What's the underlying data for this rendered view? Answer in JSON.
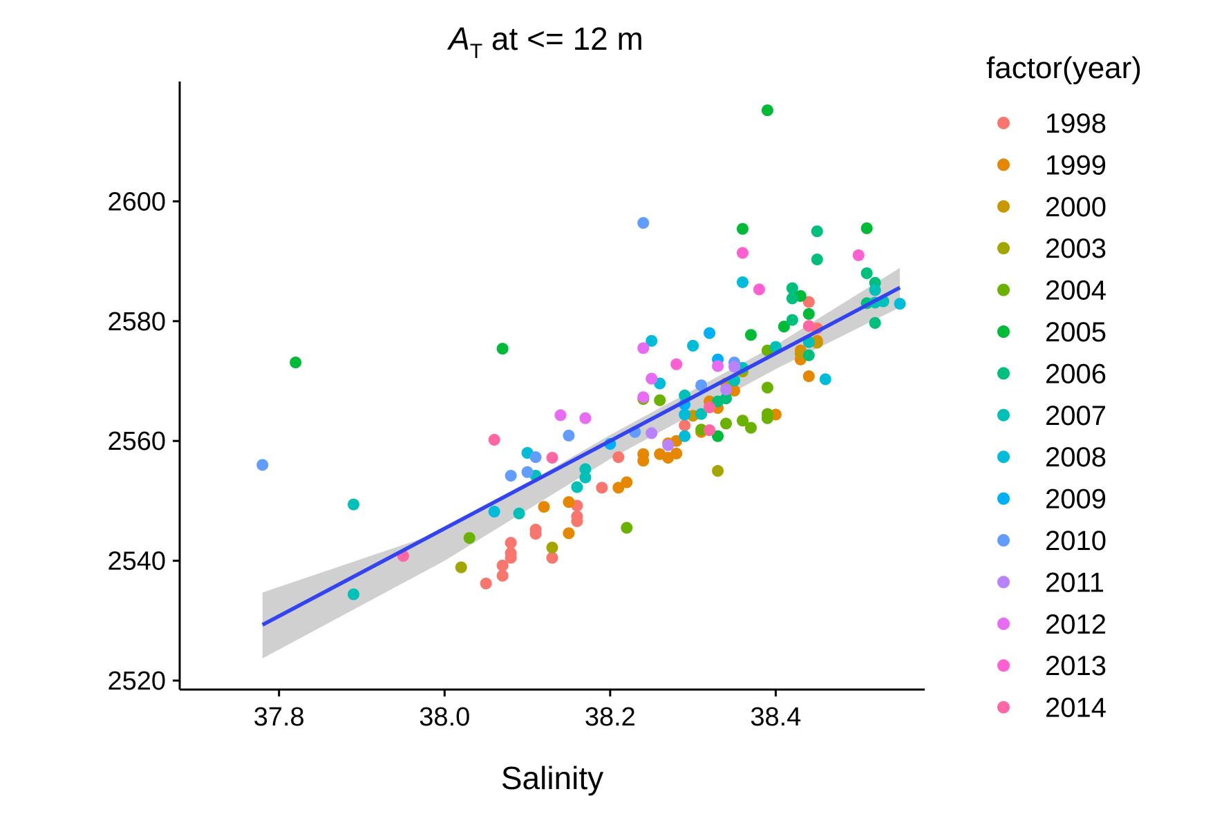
{
  "chart_data": {
    "type": "scatter",
    "title": "A",
    "title_subscript": "T",
    "title_rest": " at <= 12 m",
    "xlabel": "Salinity",
    "ylabel": "",
    "xlim": [
      37.68,
      38.58
    ],
    "ylim": [
      2518.5,
      2620
    ],
    "x_ticks": [
      37.8,
      38.0,
      38.2,
      38.4
    ],
    "x_tick_labels": [
      "37.8",
      "38.0",
      "38.2",
      "38.4"
    ],
    "y_ticks": [
      2520,
      2540,
      2560,
      2580,
      2600
    ],
    "y_tick_labels": [
      "2520",
      "2540",
      "2560",
      "2580",
      "2600"
    ],
    "grid": false,
    "legend_title": "factor(year)",
    "legend_position": "right",
    "regression": {
      "color": "#3344ee",
      "band_color": "#c8c8c8",
      "line": [
        [
          37.78,
          2529.3
        ],
        [
          38.55,
          2585.6
        ]
      ],
      "band_upper": [
        [
          37.78,
          2534.7
        ],
        [
          38.0,
          2545.0
        ],
        [
          38.2,
          2561.0
        ],
        [
          38.4,
          2576.0
        ],
        [
          38.55,
          2588.9
        ]
      ],
      "band_lower": [
        [
          37.78,
          2523.7
        ],
        [
          38.0,
          2540.0
        ],
        [
          38.2,
          2557.0
        ],
        [
          38.4,
          2572.0
        ],
        [
          38.55,
          2582.3
        ]
      ]
    },
    "series": [
      {
        "name": "1998",
        "color": "#F8766D",
        "points": [
          [
            38.05,
            2536.2
          ],
          [
            38.07,
            2537.5
          ],
          [
            38.07,
            2539.2
          ],
          [
            38.08,
            2540.5
          ],
          [
            38.08,
            2541.3
          ],
          [
            38.08,
            2543.0
          ],
          [
            38.11,
            2544.5
          ],
          [
            38.11,
            2545.2
          ],
          [
            38.13,
            2540.5
          ],
          [
            38.16,
            2546.6
          ],
          [
            38.16,
            2547.4
          ],
          [
            38.16,
            2549.2
          ],
          [
            38.19,
            2552.2
          ],
          [
            38.21,
            2557.3
          ],
          [
            38.29,
            2562.6
          ],
          [
            38.44,
            2583.2
          ],
          [
            38.45,
            2578.8
          ]
        ]
      },
      {
        "name": "1999",
        "color": "#E58700",
        "points": [
          [
            38.12,
            2549.0
          ],
          [
            38.15,
            2544.6
          ],
          [
            38.15,
            2549.8
          ],
          [
            38.21,
            2552.2
          ],
          [
            38.22,
            2553.1
          ],
          [
            38.24,
            2556.7
          ],
          [
            38.24,
            2557.8
          ],
          [
            38.26,
            2557.8
          ],
          [
            38.27,
            2557.2
          ],
          [
            38.27,
            2559.6
          ],
          [
            38.28,
            2557.9
          ],
          [
            38.28,
            2560.0
          ],
          [
            38.31,
            2561.5
          ],
          [
            38.32,
            2566.6
          ],
          [
            38.33,
            2565.5
          ],
          [
            38.35,
            2568.4
          ],
          [
            38.4,
            2564.4
          ],
          [
            38.43,
            2573.6
          ],
          [
            38.43,
            2575.1
          ],
          [
            38.44,
            2570.8
          ],
          [
            38.45,
            2576.7
          ]
        ]
      },
      {
        "name": "2000",
        "color": "#C99800",
        "points": [
          [
            38.3,
            2564.2
          ],
          [
            38.34,
            2569.6
          ],
          [
            38.43,
            2574.6
          ],
          [
            38.45,
            2576.4
          ]
        ]
      },
      {
        "name": "2003",
        "color": "#A3A500",
        "points": [
          [
            38.02,
            2538.9
          ],
          [
            38.13,
            2542.2
          ],
          [
            38.33,
            2555.0
          ],
          [
            38.36,
            2571.6
          ]
        ]
      },
      {
        "name": "2004",
        "color": "#6BB100",
        "points": [
          [
            38.03,
            2543.8
          ],
          [
            38.22,
            2545.5
          ],
          [
            38.24,
            2567.0
          ],
          [
            38.26,
            2566.8
          ],
          [
            38.31,
            2561.9
          ],
          [
            38.34,
            2562.9
          ],
          [
            38.36,
            2563.4
          ],
          [
            38.37,
            2562.2
          ],
          [
            38.39,
            2563.8
          ],
          [
            38.39,
            2564.5
          ],
          [
            38.39,
            2568.9
          ],
          [
            38.39,
            2575.1
          ]
        ]
      },
      {
        "name": "2005",
        "color": "#00BA38",
        "points": [
          [
            37.82,
            2573.1
          ],
          [
            38.07,
            2575.4
          ],
          [
            38.33,
            2560.8
          ],
          [
            38.36,
            2595.4
          ],
          [
            38.37,
            2577.7
          ],
          [
            38.39,
            2615.2
          ],
          [
            38.41,
            2579.1
          ],
          [
            38.43,
            2584.2
          ],
          [
            38.44,
            2581.2
          ],
          [
            38.51,
            2595.5
          ]
        ]
      },
      {
        "name": "2006",
        "color": "#00BF7D",
        "points": [
          [
            38.33,
            2566.6
          ],
          [
            38.34,
            2567.1
          ],
          [
            38.42,
            2580.2
          ],
          [
            38.42,
            2583.8
          ],
          [
            38.42,
            2585.5
          ],
          [
            38.44,
            2574.3
          ],
          [
            38.45,
            2590.3
          ],
          [
            38.45,
            2595.0
          ],
          [
            38.51,
            2583.0
          ],
          [
            38.51,
            2588.0
          ],
          [
            38.52,
            2579.7
          ],
          [
            38.52,
            2586.4
          ]
        ]
      },
      {
        "name": "2007",
        "color": "#00C0B8",
        "points": [
          [
            37.89,
            2534.4
          ],
          [
            37.89,
            2549.4
          ],
          [
            38.09,
            2547.9
          ],
          [
            38.11,
            2554.2
          ],
          [
            38.16,
            2552.3
          ],
          [
            38.17,
            2553.9
          ],
          [
            38.17,
            2555.3
          ],
          [
            38.29,
            2567.6
          ],
          [
            38.31,
            2564.5
          ],
          [
            38.35,
            2570.1
          ],
          [
            38.36,
            2572.2
          ],
          [
            38.4,
            2575.7
          ],
          [
            38.44,
            2576.5
          ],
          [
            38.52,
            2583.1
          ],
          [
            38.53,
            2583.3
          ],
          [
            38.52,
            2585.2
          ]
        ]
      },
      {
        "name": "2008",
        "color": "#00BCD8",
        "points": [
          [
            38.06,
            2548.2
          ],
          [
            38.1,
            2558.0
          ],
          [
            38.25,
            2576.7
          ],
          [
            38.26,
            2569.6
          ],
          [
            38.29,
            2564.4
          ],
          [
            38.29,
            2560.8
          ],
          [
            38.3,
            2575.9
          ],
          [
            38.36,
            2586.5
          ],
          [
            38.46,
            2570.3
          ],
          [
            38.55,
            2582.9
          ]
        ]
      },
      {
        "name": "2009",
        "color": "#00B0F6",
        "points": [
          [
            38.2,
            2559.5
          ],
          [
            38.29,
            2566.1
          ],
          [
            38.32,
            2578.0
          ],
          [
            38.33,
            2573.6
          ]
        ]
      },
      {
        "name": "2010",
        "color": "#619CFF",
        "points": [
          [
            37.78,
            2556.0
          ],
          [
            38.08,
            2554.2
          ],
          [
            38.1,
            2554.8
          ],
          [
            38.11,
            2557.3
          ],
          [
            38.15,
            2560.9
          ],
          [
            38.23,
            2561.5
          ],
          [
            38.24,
            2596.4
          ],
          [
            38.31,
            2569.3
          ],
          [
            38.35,
            2573.1
          ]
        ]
      },
      {
        "name": "2011",
        "color": "#B983FF",
        "points": [
          [
            38.25,
            2561.3
          ],
          [
            38.27,
            2559.3
          ],
          [
            38.34,
            2568.6
          ],
          [
            38.35,
            2572.4
          ]
        ]
      },
      {
        "name": "2012",
        "color": "#E76BF3",
        "points": [
          [
            38.14,
            2564.3
          ],
          [
            38.17,
            2563.8
          ],
          [
            38.24,
            2567.3
          ],
          [
            38.24,
            2575.5
          ],
          [
            38.25,
            2570.4
          ],
          [
            38.33,
            2572.5
          ]
        ]
      },
      {
        "name": "2013",
        "color": "#FD61D1",
        "points": [
          [
            38.28,
            2572.8
          ],
          [
            38.36,
            2591.4
          ],
          [
            38.38,
            2585.3
          ],
          [
            38.5,
            2591.0
          ]
        ]
      },
      {
        "name": "2014",
        "color": "#FF67A4",
        "points": [
          [
            37.95,
            2540.8
          ],
          [
            38.06,
            2560.2
          ],
          [
            38.13,
            2557.2
          ],
          [
            38.32,
            2565.6
          ],
          [
            38.32,
            2561.8
          ],
          [
            38.44,
            2579.2
          ]
        ]
      }
    ]
  }
}
